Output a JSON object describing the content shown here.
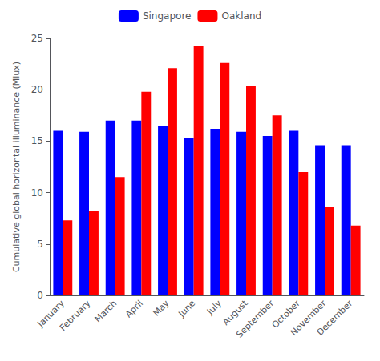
{
  "chart_data": {
    "type": "bar",
    "ylabel": "Cumulative global horizontal illuminance (Mlux)",
    "categories": [
      "January",
      "February",
      "March",
      "April",
      "May",
      "June",
      "July",
      "August",
      "September",
      "October",
      "November",
      "December"
    ],
    "series": [
      {
        "name": "Singapore",
        "color": "#0000FF",
        "values": [
          16.0,
          15.9,
          17.0,
          17.0,
          16.5,
          15.3,
          16.2,
          15.9,
          15.5,
          16.0,
          14.6,
          14.6
        ]
      },
      {
        "name": "Oakland",
        "color": "#FF0000",
        "values": [
          7.3,
          8.2,
          11.5,
          19.8,
          22.1,
          24.3,
          22.6,
          20.4,
          17.5,
          12.0,
          8.6,
          6.8
        ]
      }
    ],
    "ylim": [
      0,
      25
    ],
    "yticks": [
      0,
      5,
      10,
      15,
      20,
      25
    ],
    "grid": false,
    "legend": "top"
  }
}
